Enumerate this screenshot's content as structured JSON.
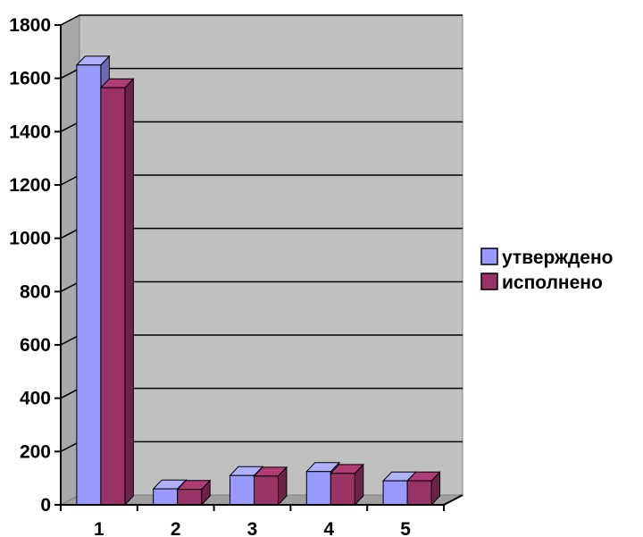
{
  "chart_data": {
    "type": "bar",
    "title": "",
    "xlabel": "",
    "ylabel": "",
    "categories": [
      "1",
      "2",
      "3",
      "4",
      "5"
    ],
    "series": [
      {
        "name": "утверждено",
        "values": [
          1650,
          60,
          110,
          125,
          90
        ],
        "color": "#9999ff"
      },
      {
        "name": "исполнено",
        "values": [
          1565,
          58,
          108,
          118,
          90
        ],
        "color": "#993366"
      }
    ],
    "ylim": [
      0,
      1800
    ],
    "yticks": [
      0,
      200,
      400,
      600,
      800,
      1000,
      1200,
      1400,
      1600,
      1800
    ],
    "grid": true,
    "legend_position": "right",
    "background_color": "#c0c0c0",
    "three_d": true
  }
}
